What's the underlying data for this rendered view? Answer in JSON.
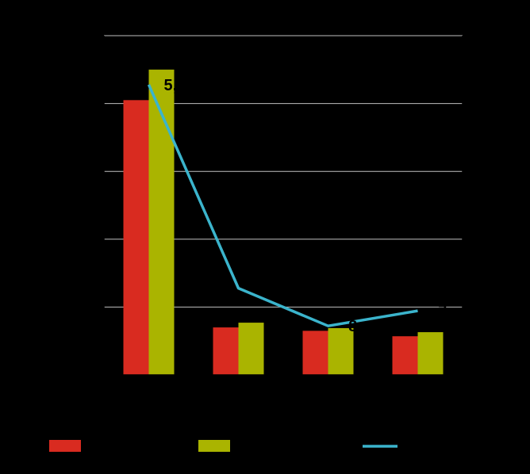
{
  "chart_data": {
    "type": "bar",
    "title": "",
    "xlabel": "",
    "ylabel": "",
    "categories": [
      "",
      "",
      "",
      ""
    ],
    "ylim_left": [
      0,
      5
    ],
    "ylim_right": [
      -9,
      0
    ],
    "grid": true,
    "legend": "bottom",
    "colors": {
      "series_1": "#d92b20",
      "series_2": "#aab400",
      "series_3": "#3bb4cc",
      "grid": "#bfbfbf",
      "axis": "#000000"
    },
    "series": [
      {
        "kind": "bar",
        "axis": "left",
        "values": [
          4.05,
          0.7,
          0.65,
          0.57
        ]
      },
      {
        "kind": "bar",
        "axis": "left",
        "values": [
          4.5,
          0.77,
          0.69,
          0.63
        ]
      },
      {
        "kind": "line",
        "axis": "right",
        "values": [
          -1.3,
          -6.7,
          -7.7,
          -7.3
        ]
      }
    ],
    "data_labels": [
      "5,",
      "",
      "-8",
      "-7,"
    ]
  }
}
